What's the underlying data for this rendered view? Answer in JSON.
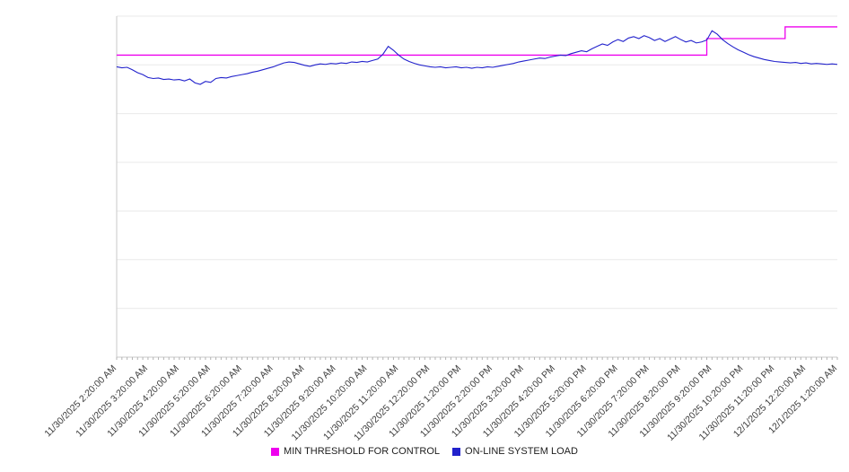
{
  "chart_data": {
    "type": "line",
    "title": "",
    "xlabel": "",
    "ylabel": "",
    "ylim": [
      0,
      7
    ],
    "grid": "horizontal",
    "legend_position": "bottom-center",
    "x_points_per_label": 6,
    "n_points": 139,
    "x_labels": [
      "11/30/2025 2:20:00 AM",
      "11/30/2025 3:20:00 AM",
      "11/30/2025 4:20:00 AM",
      "11/30/2025 5:20:00 AM",
      "11/30/2025 6:20:00 AM",
      "11/30/2025 7:20:00 AM",
      "11/30/2025 8:20:00 AM",
      "11/30/2025 9:20:00 AM",
      "11/30/2025 10:20:00 AM",
      "11/30/2025 11:20:00 AM",
      "11/30/2025 12:20:00 PM",
      "11/30/2025 1:20:00 PM",
      "11/30/2025 2:20:00 PM",
      "11/30/2025 3:20:00 PM",
      "11/30/2025 4:20:00 PM",
      "11/30/2025 5:20:00 PM",
      "11/30/2025 6:20:00 PM",
      "11/30/2025 7:20:00 PM",
      "11/30/2025 8:20:00 PM",
      "11/30/2025 9:20:00 PM",
      "11/30/2025 10:20:00 PM",
      "11/30/2025 11:20:00 PM",
      "12/1/2025 12:20:00 AM",
      "12/1/2025 1:20:00 AM"
    ],
    "series": [
      {
        "name": "MIN THRESHOLD FOR CONTROL",
        "color": "#ee00ee",
        "step": true,
        "values": [
          6.2,
          6.2,
          6.2,
          6.2,
          6.2,
          6.2,
          6.2,
          6.2,
          6.2,
          6.2,
          6.2,
          6.2,
          6.2,
          6.2,
          6.2,
          6.2,
          6.2,
          6.2,
          6.2,
          6.2,
          6.2,
          6.2,
          6.2,
          6.2,
          6.2,
          6.2,
          6.2,
          6.2,
          6.2,
          6.2,
          6.2,
          6.2,
          6.2,
          6.2,
          6.2,
          6.2,
          6.2,
          6.2,
          6.2,
          6.2,
          6.2,
          6.2,
          6.2,
          6.2,
          6.2,
          6.2,
          6.2,
          6.2,
          6.2,
          6.2,
          6.2,
          6.2,
          6.2,
          6.2,
          6.2,
          6.2,
          6.2,
          6.2,
          6.2,
          6.2,
          6.2,
          6.2,
          6.2,
          6.2,
          6.2,
          6.2,
          6.2,
          6.2,
          6.2,
          6.2,
          6.2,
          6.2,
          6.2,
          6.2,
          6.2,
          6.2,
          6.2,
          6.2,
          6.2,
          6.2,
          6.2,
          6.2,
          6.2,
          6.2,
          6.2,
          6.2,
          6.2,
          6.2,
          6.2,
          6.2,
          6.2,
          6.2,
          6.2,
          6.2,
          6.2,
          6.2,
          6.2,
          6.2,
          6.2,
          6.2,
          6.2,
          6.2,
          6.2,
          6.2,
          6.2,
          6.2,
          6.2,
          6.2,
          6.2,
          6.2,
          6.2,
          6.2,
          6.2,
          6.54,
          6.54,
          6.54,
          6.54,
          6.54,
          6.54,
          6.54,
          6.54,
          6.54,
          6.54,
          6.54,
          6.54,
          6.54,
          6.54,
          6.54,
          6.78,
          6.78,
          6.78,
          6.78,
          6.78,
          6.78,
          6.78,
          6.78,
          6.78,
          6.78,
          6.78
        ]
      },
      {
        "name": "ON-LINE SYSTEM LOAD",
        "color": "#2222cc",
        "step": false,
        "values": [
          5.96,
          5.94,
          5.95,
          5.9,
          5.84,
          5.8,
          5.74,
          5.72,
          5.73,
          5.7,
          5.71,
          5.69,
          5.7,
          5.67,
          5.71,
          5.63,
          5.6,
          5.66,
          5.64,
          5.72,
          5.74,
          5.73,
          5.76,
          5.78,
          5.8,
          5.82,
          5.85,
          5.87,
          5.9,
          5.93,
          5.96,
          6.0,
          6.04,
          6.06,
          6.05,
          6.02,
          5.99,
          5.97,
          6.0,
          6.02,
          6.01,
          6.03,
          6.02,
          6.04,
          6.03,
          6.06,
          6.05,
          6.07,
          6.06,
          6.09,
          6.12,
          6.22,
          6.38,
          6.3,
          6.2,
          6.12,
          6.07,
          6.03,
          6.0,
          5.98,
          5.96,
          5.95,
          5.96,
          5.94,
          5.95,
          5.96,
          5.94,
          5.95,
          5.93,
          5.95,
          5.94,
          5.96,
          5.95,
          5.97,
          5.99,
          6.01,
          6.03,
          6.06,
          6.08,
          6.1,
          6.12,
          6.14,
          6.13,
          6.16,
          6.18,
          6.2,
          6.19,
          6.23,
          6.26,
          6.29,
          6.27,
          6.33,
          6.38,
          6.43,
          6.4,
          6.47,
          6.52,
          6.48,
          6.55,
          6.58,
          6.54,
          6.6,
          6.56,
          6.5,
          6.54,
          6.48,
          6.53,
          6.58,
          6.52,
          6.47,
          6.5,
          6.45,
          6.47,
          6.51,
          6.7,
          6.63,
          6.52,
          6.44,
          6.37,
          6.31,
          6.26,
          6.21,
          6.17,
          6.14,
          6.11,
          6.09,
          6.07,
          6.06,
          6.05,
          6.04,
          6.05,
          6.03,
          6.04,
          6.02,
          6.03,
          6.02,
          6.01,
          6.02,
          6.01
        ]
      }
    ],
    "colors": {
      "gridline": "#e9e9e9",
      "axis": "#c9c9c9",
      "tick": "#b3b3b3",
      "label_text": "#3c3c3c"
    }
  }
}
